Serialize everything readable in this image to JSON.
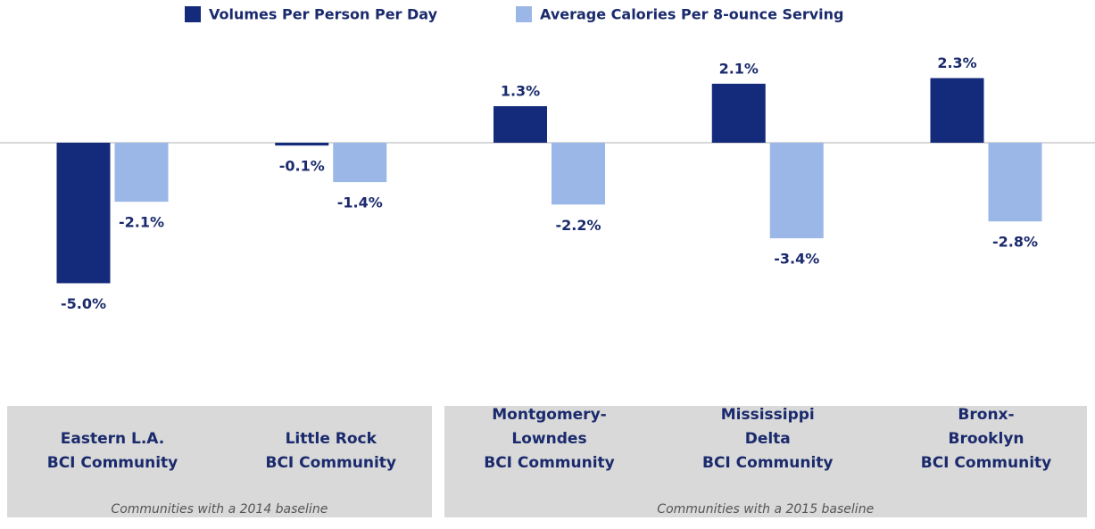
{
  "chart_data": {
    "type": "bar",
    "series": [
      {
        "name": "Volumes Per Person Per Day",
        "color": "#142a7b",
        "values": [
          -5.0,
          -0.1,
          1.3,
          2.1,
          2.3
        ],
        "value_labels": [
          "-5.0%",
          "-0.1%",
          "1.3%",
          "2.1%",
          "2.3%"
        ]
      },
      {
        "name": "Average Calories Per 8-ounce Serving",
        "color": "#9bb7e7",
        "values": [
          -2.1,
          -1.4,
          -2.2,
          -3.4,
          -2.8
        ],
        "value_labels": [
          "-2.1%",
          "-1.4%",
          "-2.2%",
          "-3.4%",
          "-2.8%"
        ]
      }
    ],
    "groups": [
      {
        "note": "Communities with a 2014 baseline",
        "categories": [
          "Eastern L.A.\nBCI Community",
          "Little Rock\nBCI Community"
        ]
      },
      {
        "note": "Communities with a 2015 baseline",
        "categories": [
          "Montgomery-\nLowndes\nBCI Community",
          "Mississippi\nDelta\nBCI Community",
          "Bronx-\nBrooklyn\nBCI Community"
        ]
      }
    ]
  }
}
